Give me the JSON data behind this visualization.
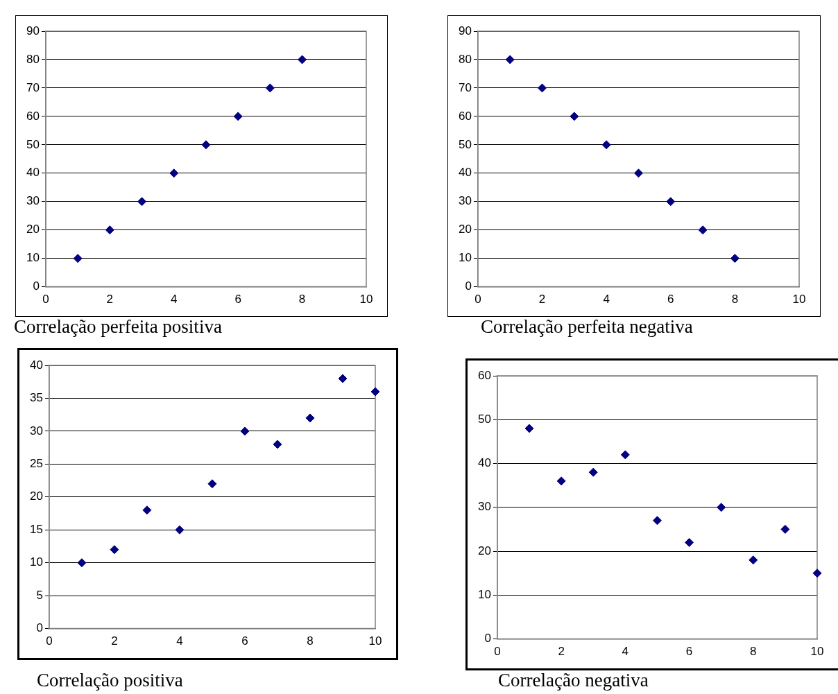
{
  "chart_data": [
    {
      "type": "scatter",
      "title": "Correlação perfeita positiva",
      "x": [
        1,
        2,
        3,
        4,
        5,
        6,
        7,
        8
      ],
      "values": [
        10,
        20,
        30,
        40,
        50,
        60,
        70,
        80
      ],
      "color": "#000080",
      "marker": "diamond",
      "xlim": [
        0,
        10
      ],
      "xticks": [
        0,
        2,
        4,
        6,
        8,
        10
      ],
      "ylim": [
        0,
        90
      ],
      "yticks": [
        0,
        10,
        20,
        30,
        40,
        50,
        60,
        70,
        80,
        90
      ],
      "grid": "y",
      "legend": false
    },
    {
      "type": "scatter",
      "title": "Correlação perfeita negativa",
      "x": [
        1,
        2,
        3,
        4,
        5,
        6,
        7,
        8
      ],
      "values": [
        80,
        70,
        60,
        50,
        40,
        30,
        20,
        10
      ],
      "color": "#000080",
      "marker": "diamond",
      "xlim": [
        0,
        10
      ],
      "xticks": [
        0,
        2,
        4,
        6,
        8,
        10
      ],
      "ylim": [
        0,
        90
      ],
      "yticks": [
        0,
        10,
        20,
        30,
        40,
        50,
        60,
        70,
        80,
        90
      ],
      "grid": "y",
      "legend": false
    },
    {
      "type": "scatter",
      "title": "Correlação positiva",
      "x": [
        1,
        2,
        3,
        4,
        5,
        6,
        7,
        8,
        9,
        10
      ],
      "values": [
        10,
        12,
        18,
        15,
        22,
        30,
        28,
        32,
        38,
        36
      ],
      "color": "#000080",
      "marker": "diamond",
      "xlim": [
        0,
        10
      ],
      "xticks": [
        0,
        2,
        4,
        6,
        8,
        10
      ],
      "ylim": [
        0,
        40
      ],
      "yticks": [
        0,
        5,
        10,
        15,
        20,
        25,
        30,
        35,
        40
      ],
      "grid": "y",
      "legend": false
    },
    {
      "type": "scatter",
      "title": "Correlação negativa",
      "x": [
        1,
        2,
        3,
        4,
        5,
        6,
        7,
        8,
        9,
        10
      ],
      "values": [
        48,
        36,
        38,
        42,
        27,
        22,
        30,
        18,
        25,
        15
      ],
      "color": "#000080",
      "marker": "diamond",
      "xlim": [
        0,
        10
      ],
      "xticks": [
        0,
        2,
        4,
        6,
        8,
        10
      ],
      "ylim": [
        0,
        60
      ],
      "yticks": [
        0,
        10,
        20,
        30,
        40,
        50,
        60
      ],
      "grid": "y",
      "legend": false
    }
  ]
}
